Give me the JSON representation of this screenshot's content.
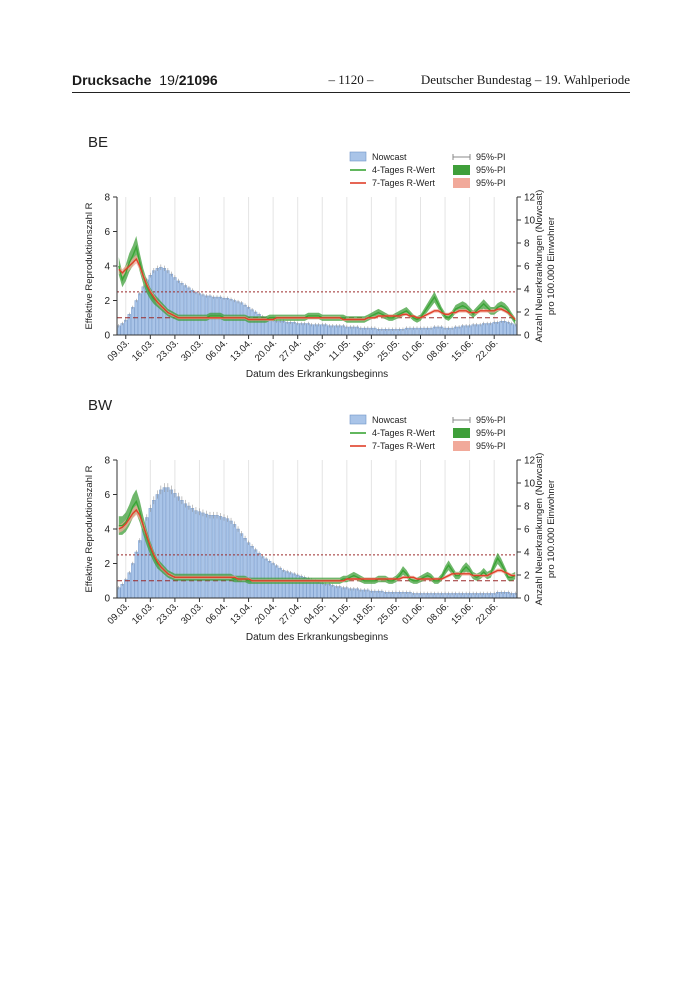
{
  "header": {
    "doc_label": "Drucksache",
    "doc_number_plain": "19/",
    "doc_number_bold": "21096",
    "page_number": "– 1120 –",
    "publisher": "Deutscher Bundestag – 19. Wahlperiode"
  },
  "chart_data": [
    {
      "id": "BE",
      "type": "bar",
      "title": "BE",
      "xlabel": "Datum des Erkrankungsbeginns",
      "ylabel_left": "Effektive Reproduktionszahl R",
      "ylabel_right_line1": "Anzahl Neuerkrankungen (Nowcast)",
      "ylabel_right_line2": "pro 100.000 Einwohner",
      "x_tick_labels": [
        "09.03.",
        "16.03.",
        "23.03.",
        "30.03.",
        "06.04.",
        "13.04.",
        "20.04.",
        "27.04.",
        "04.05.",
        "11.05.",
        "18.05.",
        "25.05.",
        "01.06.",
        "08.06.",
        "15.06.",
        "22.06."
      ],
      "y_left_lim": [
        0,
        8
      ],
      "y_left_ticks": [
        "0",
        "2",
        "4",
        "6",
        "8"
      ],
      "y_right_lim": [
        0,
        12
      ],
      "y_right_ticks": [
        "0",
        "2",
        "4",
        "6",
        "8",
        "10",
        "12"
      ],
      "reference_lines_R": [
        1,
        2.5
      ],
      "legend": {
        "nowcast": "Nowcast",
        "r4": "4-Tages R-Wert",
        "r7": "7-Tages R-Wert",
        "pi_bar": "95%-PI",
        "pi_r4": "95%-PI",
        "pi_r7": "95%-PI"
      },
      "series_nowcast_per_100k": {
        "start_date": "07.03.",
        "values": [
          0.8,
          1.0,
          1.3,
          1.8,
          2.4,
          3.0,
          3.6,
          4.2,
          4.8,
          5.2,
          5.6,
          5.8,
          5.9,
          5.8,
          5.6,
          5.3,
          5.0,
          4.7,
          4.5,
          4.3,
          4.1,
          3.9,
          3.7,
          3.6,
          3.5,
          3.4,
          3.4,
          3.3,
          3.3,
          3.3,
          3.2,
          3.2,
          3.1,
          3.0,
          2.9,
          2.8,
          2.6,
          2.4,
          2.2,
          2.0,
          1.8,
          1.6,
          1.5,
          1.4,
          1.3,
          1.2,
          1.2,
          1.2,
          1.1,
          1.1,
          1.1,
          1.0,
          1.0,
          1.0,
          1.0,
          0.9,
          0.9,
          0.9,
          0.9,
          0.9,
          0.8,
          0.8,
          0.8,
          0.8,
          0.8,
          0.7,
          0.7,
          0.7,
          0.7,
          0.6,
          0.6,
          0.6,
          0.6,
          0.6,
          0.5,
          0.5,
          0.5,
          0.5,
          0.5,
          0.5,
          0.5,
          0.5,
          0.6,
          0.6,
          0.6,
          0.6,
          0.6,
          0.6,
          0.6,
          0.6,
          0.7,
          0.7,
          0.7,
          0.6,
          0.6,
          0.6,
          0.7,
          0.7,
          0.8,
          0.8,
          0.8,
          0.9,
          0.9,
          0.9,
          1.0,
          1.0,
          1.0,
          1.1,
          1.1,
          1.2,
          1.2,
          1.1,
          1.0,
          0.9
        ]
      },
      "series_R4": [
        4.0,
        3.2,
        3.6,
        4.2,
        4.6,
        5.1,
        4.2,
        3.4,
        2.8,
        2.4,
        2.1,
        1.9,
        1.7,
        1.5,
        1.3,
        1.2,
        1.1,
        1.0,
        1.0,
        1.0,
        1.0,
        1.0,
        1.0,
        1.0,
        1.0,
        1.0,
        1.1,
        1.1,
        1.1,
        1.1,
        1.0,
        1.0,
        1.0,
        1.0,
        1.0,
        1.0,
        1.0,
        0.9,
        0.9,
        0.9,
        0.9,
        0.9,
        0.9,
        1.0,
        1.0,
        1.0,
        1.0,
        1.0,
        1.0,
        1.0,
        1.0,
        1.0,
        1.0,
        1.0,
        1.1,
        1.1,
        1.1,
        1.1,
        1.0,
        1.0,
        1.0,
        1.0,
        1.0,
        1.0,
        1.0,
        0.9,
        0.9,
        0.9,
        0.9,
        0.9,
        0.9,
        1.0,
        1.1,
        1.2,
        1.3,
        1.2,
        1.1,
        1.0,
        1.0,
        1.1,
        1.2,
        1.3,
        1.4,
        1.2,
        1.0,
        0.9,
        1.0,
        1.3,
        1.6,
        1.9,
        2.2,
        1.8,
        1.4,
        1.1,
        1.0,
        1.2,
        1.5,
        1.6,
        1.7,
        1.6,
        1.4,
        1.2,
        1.4,
        1.6,
        1.8,
        1.6,
        1.4,
        1.4,
        1.6,
        1.7,
        1.6,
        1.4,
        1.1,
        0.8
      ],
      "series_R7": [
        3.8,
        3.6,
        3.8,
        4.0,
        4.2,
        4.4,
        4.0,
        3.4,
        2.9,
        2.5,
        2.2,
        1.9,
        1.7,
        1.5,
        1.3,
        1.2,
        1.1,
        1.0,
        1.0,
        1.0,
        1.0,
        1.0,
        1.0,
        1.0,
        1.0,
        1.0,
        1.0,
        1.0,
        1.0,
        1.0,
        1.0,
        1.0,
        1.0,
        1.0,
        1.0,
        1.0,
        1.0,
        0.9,
        0.9,
        0.9,
        0.9,
        0.9,
        0.9,
        0.9,
        0.9,
        1.0,
        1.0,
        1.0,
        1.0,
        1.0,
        1.0,
        1.0,
        1.0,
        1.0,
        1.0,
        1.0,
        1.0,
        1.0,
        1.0,
        1.0,
        1.0,
        1.0,
        1.0,
        1.0,
        0.9,
        0.9,
        0.9,
        0.9,
        0.9,
        0.9,
        0.9,
        1.0,
        1.0,
        1.0,
        1.1,
        1.1,
        1.1,
        1.1,
        1.1,
        1.1,
        1.1,
        1.2,
        1.2,
        1.1,
        1.1,
        1.0,
        1.0,
        1.1,
        1.2,
        1.3,
        1.4,
        1.4,
        1.3,
        1.2,
        1.2,
        1.3,
        1.3,
        1.4,
        1.4,
        1.4,
        1.3,
        1.3,
        1.3,
        1.4,
        1.4,
        1.4,
        1.4,
        1.4,
        1.5,
        1.5,
        1.4,
        1.3,
        1.1,
        0.9
      ],
      "colors": {
        "bar": "#a9c4e8",
        "bar_edge": "#6f94c8",
        "r4": "#3aa535",
        "r7": "#e0402a",
        "pi_r4": "#3f9f3a",
        "pi_r7": "#f1a99a",
        "ref": "#9b2a2a"
      }
    },
    {
      "id": "BW",
      "type": "bar",
      "title": "BW",
      "xlabel": "Datum des Erkrankungsbeginns",
      "ylabel_left": "Effektive Reproduktionszahl R",
      "ylabel_right_line1": "Anzahl Neuerkrankungen (Nowcast)",
      "ylabel_right_line2": "pro 100.000 Einwohner",
      "x_tick_labels": [
        "09.03.",
        "16.03.",
        "23.03.",
        "30.03.",
        "06.04.",
        "13.04.",
        "20.04.",
        "27.04.",
        "04.05.",
        "11.05.",
        "18.05.",
        "25.05.",
        "01.06.",
        "08.06.",
        "15.06.",
        "22.06."
      ],
      "y_left_lim": [
        0,
        8
      ],
      "y_left_ticks": [
        "0",
        "2",
        "4",
        "6",
        "8"
      ],
      "y_right_lim": [
        0,
        12
      ],
      "y_right_ticks": [
        "0",
        "2",
        "4",
        "6",
        "8",
        "10",
        "12"
      ],
      "reference_lines_R": [
        1,
        2.5
      ],
      "legend": {
        "nowcast": "Nowcast",
        "r4": "4-Tages R-Wert",
        "r7": "7-Tages R-Wert",
        "pi_bar": "95%-PI",
        "pi_r4": "95%-PI",
        "pi_r7": "95%-PI"
      },
      "series_nowcast_per_100k": {
        "start_date": "07.03.",
        "values": [
          0.9,
          1.2,
          1.6,
          2.2,
          3.0,
          4.0,
          5.0,
          6.0,
          7.0,
          7.8,
          8.5,
          9.0,
          9.4,
          9.6,
          9.6,
          9.4,
          9.1,
          8.8,
          8.5,
          8.2,
          8.0,
          7.8,
          7.6,
          7.5,
          7.4,
          7.3,
          7.2,
          7.2,
          7.2,
          7.1,
          7.0,
          6.9,
          6.7,
          6.4,
          6.0,
          5.6,
          5.2,
          4.8,
          4.5,
          4.2,
          3.9,
          3.6,
          3.4,
          3.2,
          3.0,
          2.8,
          2.6,
          2.4,
          2.3,
          2.2,
          2.1,
          2.0,
          1.9,
          1.8,
          1.7,
          1.6,
          1.5,
          1.4,
          1.3,
          1.2,
          1.2,
          1.1,
          1.0,
          1.0,
          0.9,
          0.9,
          0.8,
          0.8,
          0.8,
          0.7,
          0.7,
          0.7,
          0.6,
          0.6,
          0.6,
          0.6,
          0.5,
          0.5,
          0.5,
          0.5,
          0.5,
          0.5,
          0.5,
          0.5,
          0.4,
          0.4,
          0.4,
          0.4,
          0.4,
          0.4,
          0.4,
          0.4,
          0.4,
          0.4,
          0.4,
          0.4,
          0.4,
          0.4,
          0.4,
          0.4,
          0.4,
          0.4,
          0.4,
          0.4,
          0.4,
          0.4,
          0.4,
          0.4,
          0.5,
          0.5,
          0.5,
          0.5,
          0.4,
          0.4
        ]
      },
      "series_R4": [
        4.2,
        4.2,
        4.4,
        4.8,
        5.3,
        5.6,
        5.0,
        4.2,
        3.5,
        2.9,
        2.4,
        2.0,
        1.8,
        1.6,
        1.4,
        1.3,
        1.2,
        1.2,
        1.2,
        1.2,
        1.2,
        1.2,
        1.2,
        1.2,
        1.2,
        1.2,
        1.2,
        1.2,
        1.2,
        1.2,
        1.2,
        1.2,
        1.2,
        1.1,
        1.1,
        1.1,
        1.1,
        1.0,
        1.0,
        1.0,
        1.0,
        1.0,
        1.0,
        1.0,
        1.0,
        1.0,
        1.0,
        1.0,
        1.0,
        1.0,
        1.0,
        1.0,
        1.0,
        1.0,
        1.0,
        1.0,
        1.0,
        1.0,
        1.0,
        1.0,
        1.0,
        1.0,
        1.0,
        1.0,
        1.1,
        1.1,
        1.2,
        1.3,
        1.2,
        1.1,
        1.0,
        1.0,
        1.0,
        1.0,
        1.1,
        1.1,
        1.1,
        1.0,
        1.0,
        1.1,
        1.3,
        1.6,
        1.4,
        1.1,
        1.0,
        1.0,
        1.1,
        1.2,
        1.3,
        1.2,
        1.0,
        1.0,
        1.2,
        1.6,
        1.9,
        1.6,
        1.3,
        1.3,
        1.6,
        1.8,
        1.6,
        1.3,
        1.2,
        1.3,
        1.5,
        1.3,
        1.4,
        1.9,
        2.3,
        2.0,
        1.6,
        1.2,
        1.2,
        1.3
      ],
      "series_R7": [
        4.0,
        4.1,
        4.3,
        4.6,
        4.9,
        5.1,
        4.8,
        4.2,
        3.6,
        3.0,
        2.5,
        2.1,
        1.8,
        1.6,
        1.4,
        1.3,
        1.2,
        1.2,
        1.2,
        1.2,
        1.2,
        1.2,
        1.2,
        1.2,
        1.2,
        1.2,
        1.2,
        1.2,
        1.2,
        1.2,
        1.2,
        1.2,
        1.2,
        1.2,
        1.1,
        1.1,
        1.1,
        1.1,
        1.0,
        1.0,
        1.0,
        1.0,
        1.0,
        1.0,
        1.0,
        1.0,
        1.0,
        1.0,
        1.0,
        1.0,
        1.0,
        1.0,
        1.0,
        1.0,
        1.0,
        1.0,
        1.0,
        1.0,
        1.0,
        1.0,
        1.0,
        1.0,
        1.0,
        1.0,
        1.0,
        1.1,
        1.1,
        1.1,
        1.1,
        1.1,
        1.1,
        1.1,
        1.1,
        1.1,
        1.1,
        1.1,
        1.1,
        1.1,
        1.1,
        1.1,
        1.1,
        1.2,
        1.2,
        1.2,
        1.2,
        1.1,
        1.1,
        1.1,
        1.1,
        1.1,
        1.1,
        1.1,
        1.1,
        1.2,
        1.3,
        1.4,
        1.4,
        1.4,
        1.4,
        1.4,
        1.4,
        1.3,
        1.3,
        1.3,
        1.3,
        1.3,
        1.4,
        1.5,
        1.6,
        1.6,
        1.5,
        1.4,
        1.3,
        1.3
      ],
      "colors": {
        "bar": "#a9c4e8",
        "bar_edge": "#6f94c8",
        "r4": "#3aa535",
        "r7": "#e0402a",
        "pi_r4": "#3f9f3a",
        "pi_r7": "#f1a99a",
        "ref": "#9b2a2a"
      }
    }
  ]
}
